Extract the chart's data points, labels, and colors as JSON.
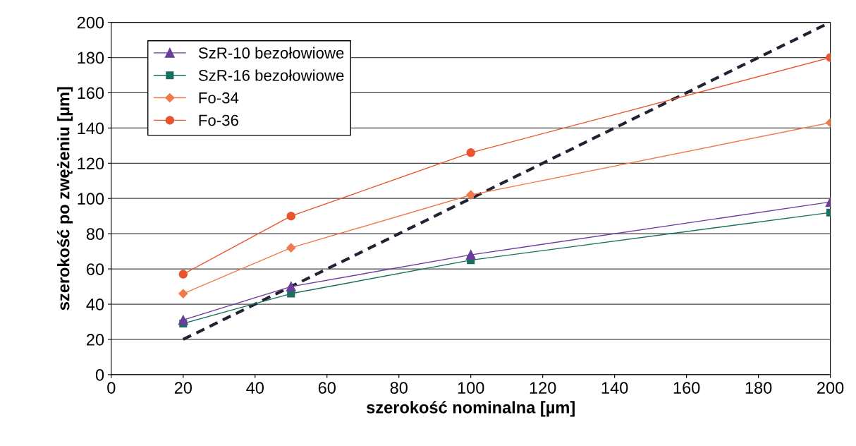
{
  "chart_data": {
    "type": "line",
    "xlabel": "szerokość nominalna [µm]",
    "ylabel": "szerokość po zwężeniu [µm]",
    "xlim": [
      0,
      200
    ],
    "xticks": [
      0,
      20,
      40,
      60,
      80,
      100,
      120,
      140,
      160,
      180,
      200
    ],
    "ylim": [
      0,
      200
    ],
    "yticks": [
      0,
      20,
      40,
      60,
      80,
      100,
      120,
      140,
      160,
      180,
      200
    ],
    "grid": "y",
    "legend": "top left",
    "series": [
      {
        "name": "SzR-10 bezołowiowe",
        "color": "#6a3d9a",
        "marker": "triangle",
        "x": [
          20,
          50,
          100,
          200
        ],
        "values": [
          31,
          50,
          68,
          98
        ]
      },
      {
        "name": "SzR-16 bezołowiowe",
        "color": "#17705e",
        "marker": "square",
        "x": [
          20,
          50,
          100,
          200
        ],
        "values": [
          29,
          46,
          65,
          92
        ]
      },
      {
        "name": "Fo-34",
        "color": "#f07a4a",
        "marker": "diamond",
        "x": [
          20,
          50,
          100,
          200
        ],
        "values": [
          46,
          72,
          102,
          143
        ]
      },
      {
        "name": "Fo-36",
        "color": "#e8552e",
        "marker": "circle",
        "x": [
          20,
          50,
          100,
          200
        ],
        "values": [
          57,
          90,
          126,
          180
        ]
      },
      {
        "color": "#222233",
        "marker": "none",
        "line_style": "dashed",
        "x": [
          20,
          200
        ],
        "values": [
          20,
          200
        ]
      }
    ]
  }
}
